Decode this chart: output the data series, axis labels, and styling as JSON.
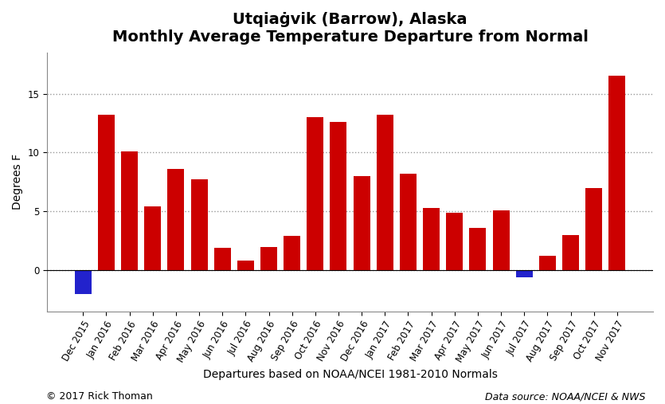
{
  "title_line1": "Utqiaġvik (Barrow), Alaska",
  "title_line2": "Monthly Average Temperature Departure from Normal",
  "xlabel": "Departures based on NOAA/NCEI 1981-2010 Normals",
  "ylabel": "Degrees F",
  "footnote_left": "© 2017 Rick Thoman",
  "footnote_right": "Data source: NOAA/NCEI & NWS",
  "categories": [
    "Dec 2015",
    "Jan 2016",
    "Feb 2016",
    "Mar 2016",
    "Apr 2016",
    "May 2016",
    "Jun 2016",
    "Jul 2016",
    "Aug 2016",
    "Sep 2016",
    "Oct 2016",
    "Nov 2016",
    "Dec 2016",
    "Jan 2017",
    "Feb 2017",
    "Mar 2017",
    "Apr 2017",
    "May 2017",
    "Jun 2017",
    "Jul 2017",
    "Aug 2017",
    "Sep 2017",
    "Oct 2017",
    "Nov 2017"
  ],
  "values": [
    -2.0,
    13.2,
    10.1,
    5.4,
    8.6,
    7.7,
    1.9,
    0.8,
    2.0,
    2.9,
    13.0,
    12.6,
    8.0,
    13.2,
    8.2,
    5.3,
    4.9,
    3.6,
    5.1,
    -0.6,
    1.2,
    3.0,
    7.0,
    16.5
  ],
  "bar_colors_positive": "#cc0000",
  "bar_colors_negative": "#2222cc",
  "ylim": [
    -3.5,
    18.5
  ],
  "yticks": [
    0,
    5,
    10,
    15
  ],
  "background_color": "#ffffff",
  "plot_bg_color": "#ffffff",
  "grid_color": "#999999",
  "title_fontsize": 14,
  "axis_label_fontsize": 10,
  "tick_label_fontsize": 8.5,
  "footnote_fontsize": 9
}
